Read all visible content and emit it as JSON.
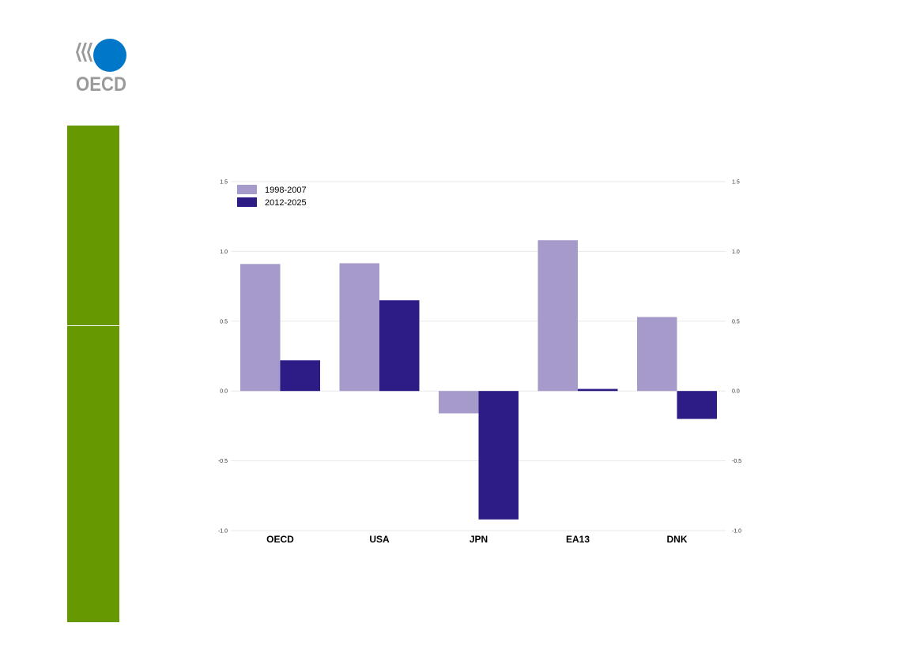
{
  "logo": {
    "text": "OECD"
  },
  "colors": {
    "sidebar": "#669900",
    "series1": "#a59ac9",
    "series2": "#2d1b86",
    "grid": "#e8e8e8",
    "logo_blue": "#0077c8",
    "logo_grey": "#9a9a9a"
  },
  "chart_data": {
    "type": "bar",
    "categories": [
      "OECD",
      "USA",
      "JPN",
      "EA13",
      "DNK"
    ],
    "series": [
      {
        "name": "1998-2007",
        "values": [
          0.91,
          0.915,
          -0.16,
          1.08,
          0.53
        ]
      },
      {
        "name": "2012-2025",
        "values": [
          0.22,
          0.65,
          -0.92,
          0.015,
          -0.2
        ]
      }
    ],
    "ylim": [
      -1.0,
      1.5
    ],
    "yticks": [
      "1.5",
      "1.0",
      "0.5",
      "0.0",
      "-0.5",
      "-1.0"
    ],
    "ytick_values": [
      1.5,
      1.0,
      0.5,
      0.0,
      -0.5,
      -1.0
    ],
    "legend_position": "top-left",
    "grid": true,
    "dual_y_axis": true
  }
}
